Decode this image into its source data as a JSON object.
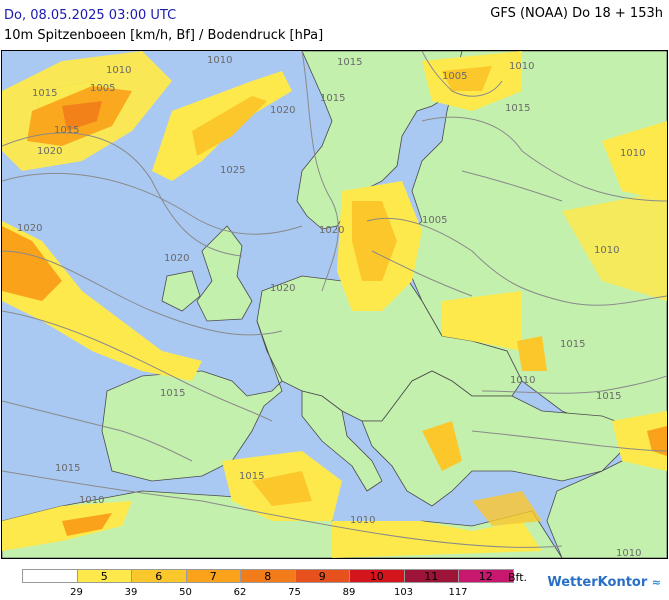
{
  "header": {
    "date_line": "Do, 08.05.2025 03:00 UTC",
    "title_line": "10m Spitzenboeen [km/h, Bf] / Bodendruck [hPa]",
    "model_line": "GFS (NOAA) Do 18 + 153h"
  },
  "isobar_labels": [
    "1010",
    "1015",
    "1010",
    "1015",
    "1005",
    "1015",
    "1010",
    "1020",
    "1015",
    "1020",
    "1025",
    "1020",
    "1020",
    "1005",
    "1010",
    "1015",
    "1010",
    "1015",
    "1015",
    "1010",
    "1015",
    "1010",
    "1010",
    "1015",
    "1010",
    "1005",
    "1015",
    "1020",
    "1020"
  ],
  "legend": {
    "unit": "Bft.",
    "colors": [
      "#ffffff",
      "#fde94c",
      "#fcc72a",
      "#f9a21a",
      "#f27c1a",
      "#e6511e",
      "#d4161c",
      "#9e1438",
      "#c8176f"
    ],
    "bft_labels": [
      "",
      "5",
      "6",
      "7",
      "8",
      "9",
      "10",
      "11",
      "12"
    ],
    "kmh_ticks": [
      "29",
      "39",
      "50",
      "62",
      "75",
      "89",
      "103",
      "117"
    ]
  },
  "logo": {
    "text": "WetterKontor",
    "icon": "wave-icon"
  }
}
